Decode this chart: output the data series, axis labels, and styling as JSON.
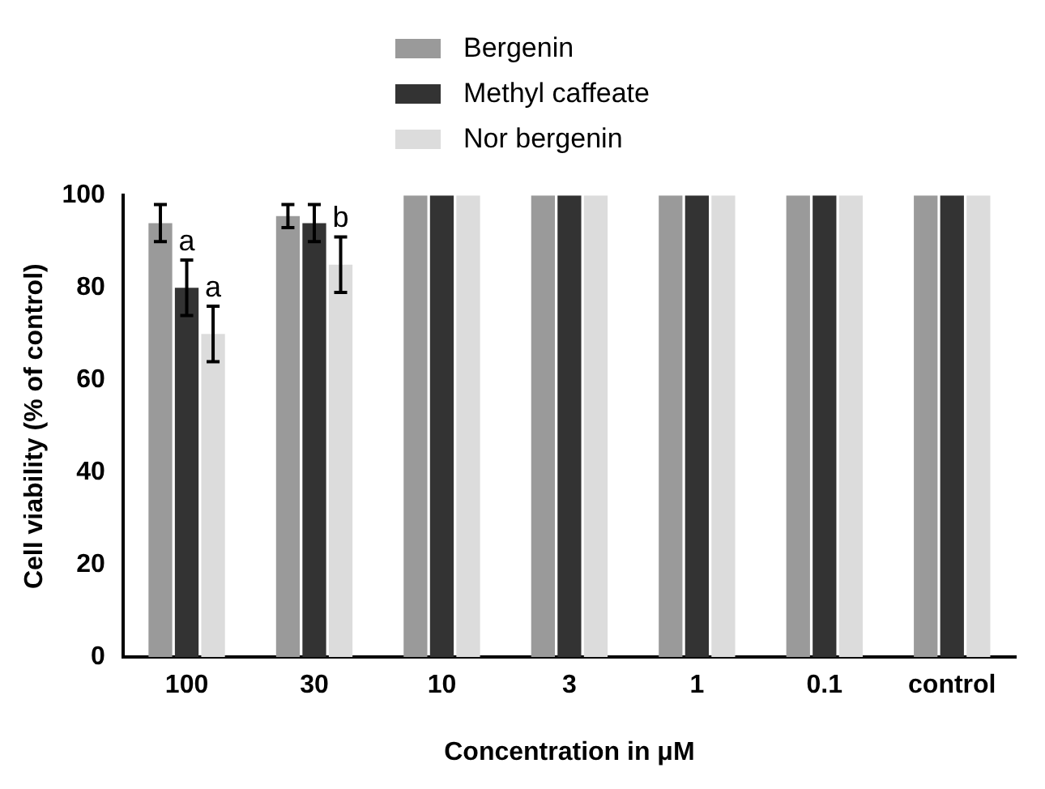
{
  "chart_data": {
    "type": "bar",
    "xlabel": "Concentration in μM",
    "ylabel": "Cell viability (% of control)",
    "categories": [
      "100",
      "30",
      "10",
      "3",
      "1",
      "0.1",
      "control"
    ],
    "series": [
      {
        "name": "Bergenin",
        "color": "#9a9a9a",
        "values": [
          94,
          95.5,
          100,
          100,
          100,
          100,
          100
        ],
        "errors": [
          4,
          2.5,
          null,
          null,
          null,
          null,
          null
        ]
      },
      {
        "name": "Methyl caffeate",
        "color": "#333333",
        "values": [
          80,
          94,
          100,
          100,
          100,
          100,
          100
        ],
        "errors": [
          6,
          4,
          null,
          null,
          null,
          null,
          null
        ]
      },
      {
        "name": "Nor bergenin",
        "color": "#dcdcdc",
        "values": [
          70,
          85,
          100,
          100,
          100,
          100,
          100
        ],
        "errors": [
          6,
          6,
          null,
          null,
          null,
          null,
          null
        ]
      }
    ],
    "ylim": [
      0,
      100
    ],
    "yticks": [
      0,
      20,
      40,
      60,
      80,
      100
    ],
    "grid": false,
    "legend": "top",
    "annotations": [
      {
        "text": "a",
        "x": "100",
        "y": 86
      },
      {
        "text": "a",
        "x": "100",
        "y": 76
      },
      {
        "text": "b",
        "x": "30",
        "y": 91
      }
    ]
  }
}
